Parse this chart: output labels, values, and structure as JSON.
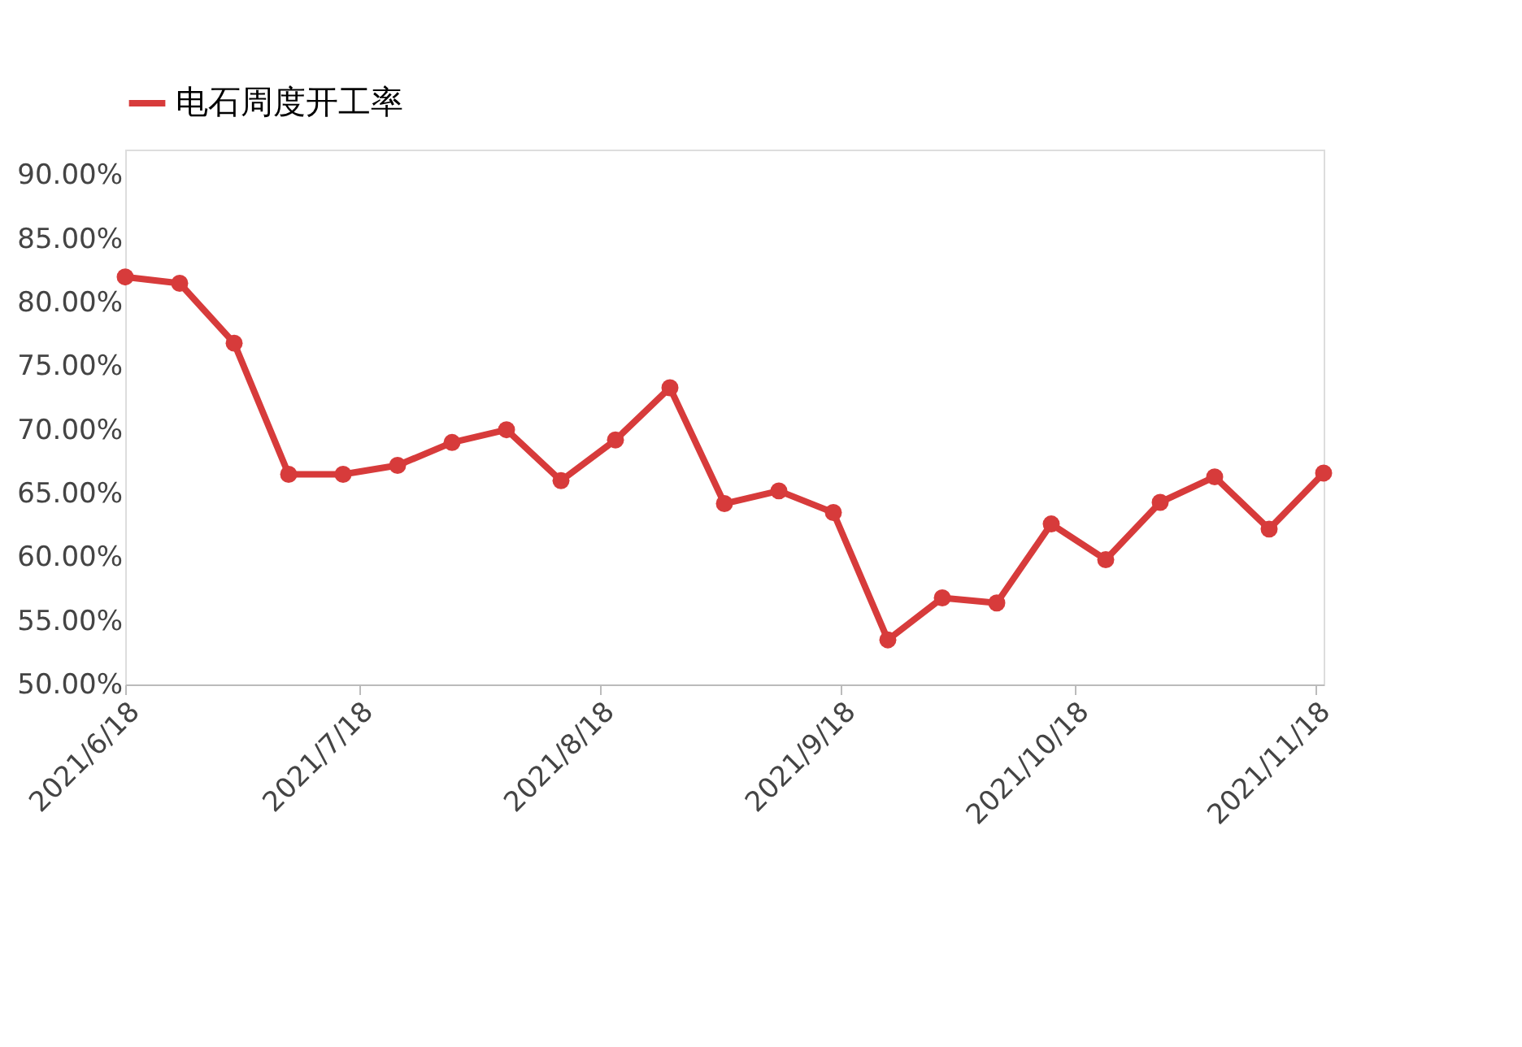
{
  "chart_data": {
    "type": "line",
    "x": [
      "2021-06-18",
      "2021-06-25",
      "2021-07-02",
      "2021-07-09",
      "2021-07-16",
      "2021-07-23",
      "2021-07-30",
      "2021-08-06",
      "2021-08-13",
      "2021-08-20",
      "2021-08-27",
      "2021-09-03",
      "2021-09-10",
      "2021-09-17",
      "2021-09-24",
      "2021-10-01",
      "2021-10-08",
      "2021-10-15",
      "2021-10-22",
      "2021-10-29",
      "2021-11-05",
      "2021-11-12",
      "2021-11-19"
    ],
    "series": [
      {
        "name": "电石周度开工率",
        "color": "#d73b3b",
        "values": [
          82.0,
          81.5,
          76.8,
          66.5,
          66.5,
          67.2,
          69.0,
          70.0,
          66.0,
          69.2,
          73.3,
          64.2,
          65.2,
          63.5,
          53.5,
          56.8,
          56.4,
          62.6,
          59.8,
          64.3,
          66.3,
          62.2,
          66.6
        ]
      }
    ],
    "xlim": [
      "2021-06-18",
      "2021-11-19"
    ],
    "xticks": [
      {
        "value": "2021-06-18",
        "label": "2021/6/18"
      },
      {
        "value": "2021-07-18",
        "label": "2021/7/18"
      },
      {
        "value": "2021-08-18",
        "label": "2021/8/18"
      },
      {
        "value": "2021-09-18",
        "label": "2021/9/18"
      },
      {
        "value": "2021-10-18",
        "label": "2021/10/18"
      },
      {
        "value": "2021-11-18",
        "label": "2021/11/18"
      }
    ],
    "ylim": [
      50,
      92
    ],
    "yticks": [
      {
        "value": 50,
        "label": "50.00%"
      },
      {
        "value": 55,
        "label": "55.00%"
      },
      {
        "value": 60,
        "label": "60.00%"
      },
      {
        "value": 65,
        "label": "65.00%"
      },
      {
        "value": 70,
        "label": "70.00%"
      },
      {
        "value": 75,
        "label": "75.00%"
      },
      {
        "value": 80,
        "label": "80.00%"
      },
      {
        "value": 85,
        "label": "85.00%"
      },
      {
        "value": 90,
        "label": "90.00%"
      }
    ],
    "grid": false,
    "legend": "top",
    "marker": "circle",
    "line_style": "solid"
  }
}
